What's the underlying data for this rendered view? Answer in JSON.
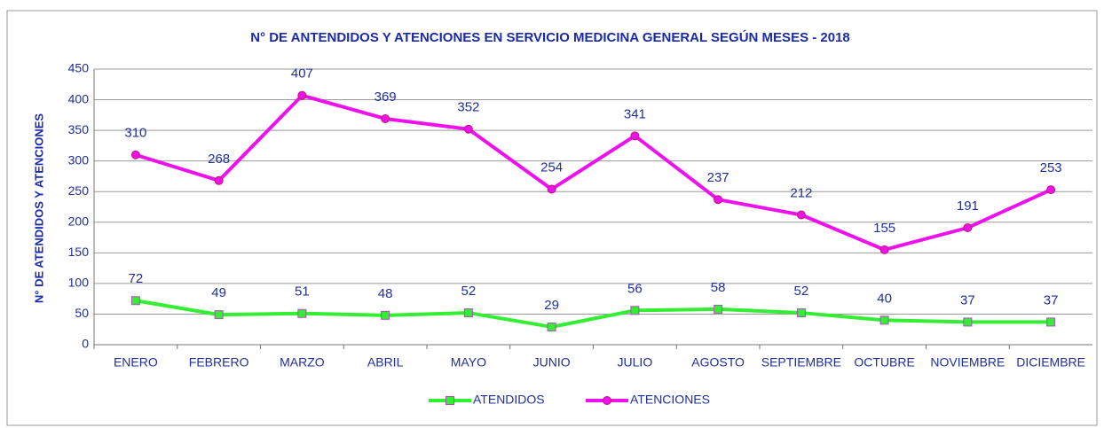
{
  "chart_data": {
    "type": "line",
    "title": "N° DE ANTENDIDOS Y ATENCIONES EN SERVICIO MEDICINA GENERAL SEGÚN MESES - 2018",
    "y_label": "N° DE ATENDIDOS Y ATENCIONES",
    "categories": [
      "ENERO",
      "FEBRERO",
      "MARZO",
      "ABRIL",
      "MAYO",
      "JUNIO",
      "JULIO",
      "AGOSTO",
      "SEPTIEMBRE",
      "OCTUBRE",
      "NOVIEMBRE",
      "DICIEMBRE"
    ],
    "series": [
      {
        "name": "ATENDIDOS",
        "color": "#33ee33",
        "marker_color": "#b04fc0",
        "values": [
          72,
          49,
          51,
          48,
          52,
          29,
          56,
          58,
          52,
          40,
          37,
          37
        ]
      },
      {
        "name": "ATENCIONES",
        "color": "#ee11ee",
        "marker_color": "#c0186e",
        "values": [
          310,
          268,
          407,
          369,
          352,
          254,
          341,
          237,
          212,
          155,
          191,
          253
        ]
      }
    ],
    "ylim": [
      0,
      450
    ],
    "yticks": [
      0,
      50,
      100,
      150,
      200,
      250,
      300,
      350,
      400,
      450
    ],
    "grid": true,
    "legend": "bottom"
  }
}
